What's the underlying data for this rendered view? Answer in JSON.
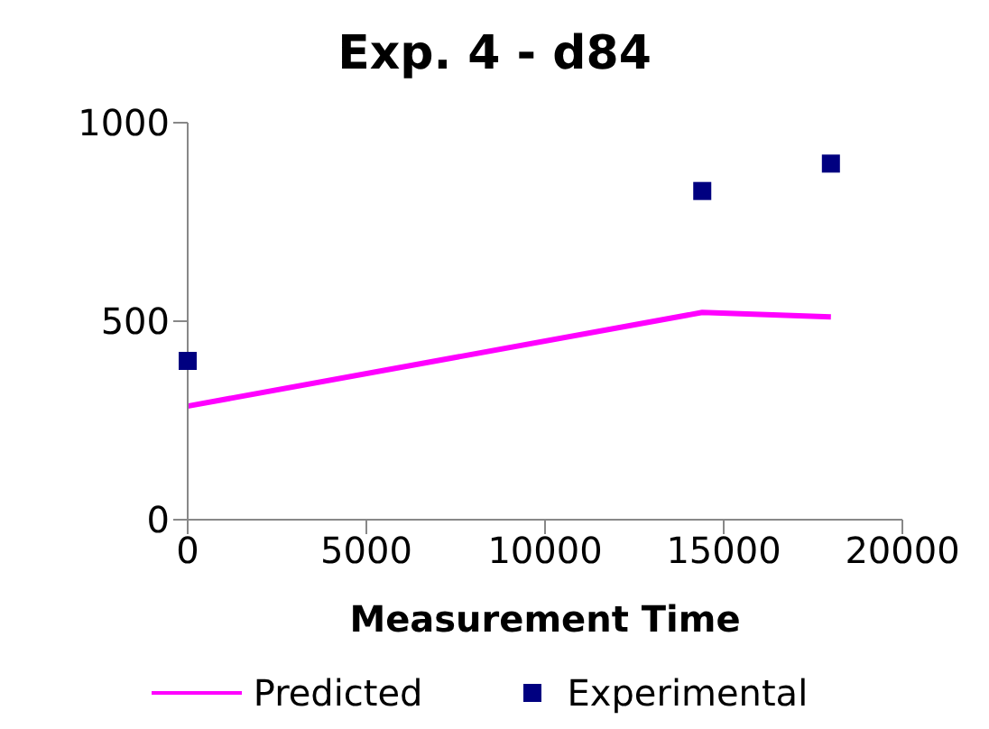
{
  "chart_data": {
    "type": "line",
    "title": "Exp. 4 - d84",
    "xlabel": "Measurement Time",
    "xlim": [
      0,
      20000
    ],
    "xticks": [
      0,
      5000,
      10000,
      15000,
      20000
    ],
    "ylim": [
      0,
      1000
    ],
    "yticks": [
      0,
      500,
      1000
    ],
    "grid": false,
    "legend": "bottom",
    "series": [
      {
        "name": "Predicted",
        "color": "#ff00ff",
        "marker": "none",
        "x": [
          0,
          14400,
          18000
        ],
        "values": [
          286,
          522,
          511
        ]
      },
      {
        "name": "Experimental",
        "type": "scatter",
        "color": "#000080",
        "marker": "square",
        "x": [
          0,
          14400,
          18000
        ],
        "values": [
          400,
          828,
          897
        ]
      }
    ]
  }
}
